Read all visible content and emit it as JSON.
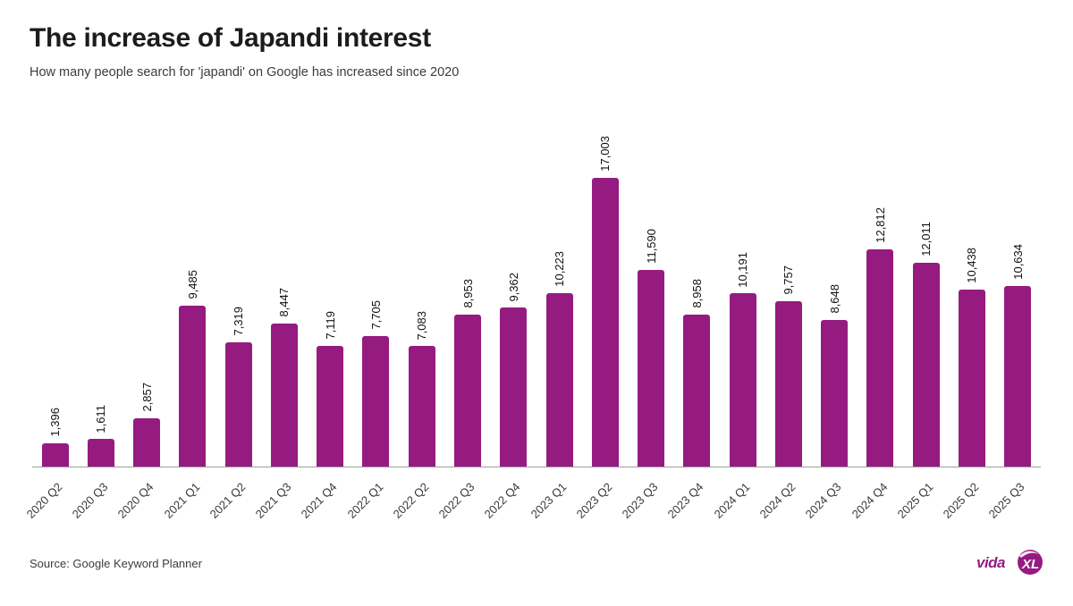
{
  "header": {
    "title": "The increase of Japandi interest",
    "subtitle": "How many people search for 'japandi' on Google has increased since 2020"
  },
  "footer": {
    "source": "Source: Google Keyword Planner",
    "logo_text": "vida",
    "logo_badge": "XL"
  },
  "colors": {
    "bar": "#951B81",
    "axis": "#9e9e9e",
    "title": "#1c1c1c",
    "body_text": "#3c3c3c",
    "value_label": "#111111",
    "logo": "#951B81"
  },
  "chart_data": {
    "type": "bar",
    "title": "The increase of Japandi interest",
    "subtitle": "How many people search for 'japandi' on Google has increased since 2020",
    "source": "Source: Google Keyword Planner",
    "xlabel": "",
    "ylabel": "",
    "categories": [
      "2020 Q2",
      "2020 Q3",
      "2020 Q4",
      "2021 Q1",
      "2021 Q2",
      "2021 Q3",
      "2021 Q4",
      "2022 Q1",
      "2022 Q2",
      "2022 Q3",
      "2022 Q4",
      "2023 Q1",
      "2023 Q2",
      "2023 Q3",
      "2023 Q4",
      "2024 Q1",
      "2024 Q2",
      "2024 Q3",
      "2024 Q4",
      "2025 Q1",
      "2025 Q2",
      "2025 Q3"
    ],
    "values": [
      1396,
      1611,
      2857,
      9485,
      7319,
      8447,
      7119,
      7705,
      7083,
      8953,
      9362,
      10223,
      17003,
      11590,
      8958,
      10191,
      9757,
      8648,
      12812,
      12011,
      10438,
      10634
    ],
    "value_labels": [
      "1,396",
      "1,611",
      "2,857",
      "9,485",
      "7,319",
      "8,447",
      "7,119",
      "7,705",
      "7,083",
      "8,953",
      "9,362",
      "10,223",
      "17,003",
      "11,590",
      "8,958",
      "10,191",
      "9,757",
      "8,648",
      "12,812",
      "12,011",
      "10,438",
      "10,634"
    ],
    "ylim": [
      0,
      17500
    ],
    "grid": false,
    "legend": false,
    "bar_color": "#951B81",
    "value_label_rotation": -90,
    "xtick_rotation": -45
  }
}
